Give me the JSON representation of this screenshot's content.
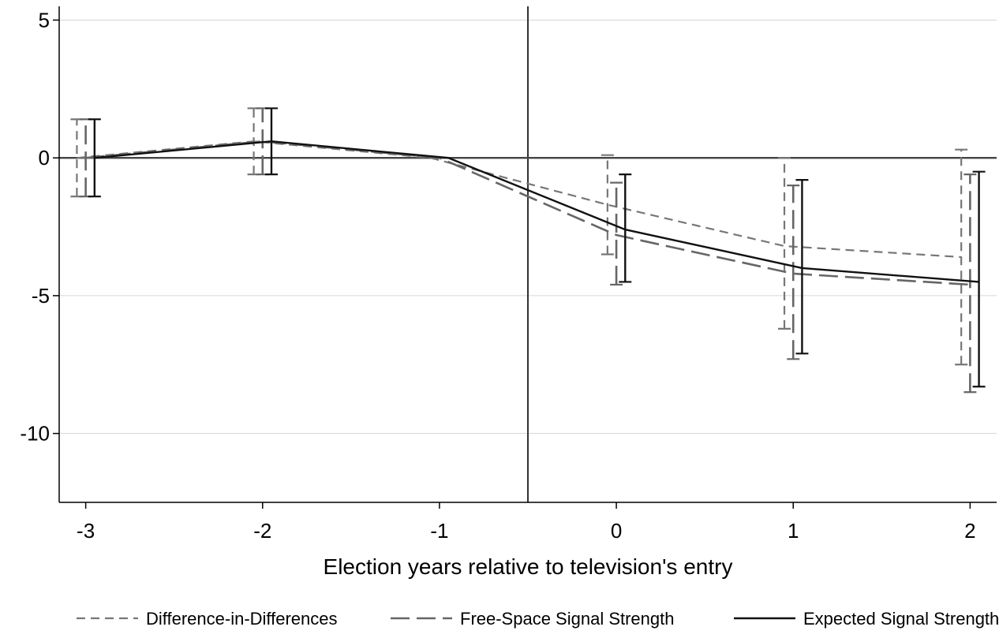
{
  "chart_data": {
    "type": "line",
    "xlabel": "Election years relative to television's entry",
    "ylabel": "",
    "xlim": [
      -3.15,
      2.15
    ],
    "ylim": [
      -12.5,
      5.5
    ],
    "x_ticks": [
      "-3",
      "-2",
      "-1",
      "0",
      "1",
      "2"
    ],
    "y_ticks": [
      "5",
      "0",
      "-5",
      "-10"
    ],
    "grid": "horizontal",
    "reference_lines": {
      "vertical_x": -0.5,
      "horizontal_y": 0
    },
    "legend_position": "bottom",
    "series": [
      {
        "name": "Difference-in-Differences",
        "style": "short-dash",
        "color": "#777777",
        "offset": -0.05,
        "x": [
          -3,
          -2,
          -1,
          0,
          1,
          2
        ],
        "y": [
          0.0,
          0.6,
          0.0,
          -1.7,
          -3.2,
          -3.6
        ],
        "ci_low": [
          -1.4,
          -0.6,
          null,
          -3.5,
          -6.2,
          -7.5
        ],
        "ci_high": [
          1.4,
          1.8,
          null,
          0.1,
          0.0,
          0.3
        ]
      },
      {
        "name": "Free-Space Signal Strength",
        "style": "long-dash",
        "color": "#666666",
        "offset": 0.0,
        "x": [
          -3,
          -2,
          -1,
          0,
          1,
          2
        ],
        "y": [
          0.0,
          0.6,
          0.0,
          -2.8,
          -4.2,
          -4.6
        ],
        "ci_low": [
          -1.4,
          -0.6,
          null,
          -4.6,
          -7.3,
          -8.5
        ],
        "ci_high": [
          1.4,
          1.8,
          null,
          -0.9,
          -1.0,
          -0.6
        ]
      },
      {
        "name": "Expected Signal Strength",
        "style": "solid",
        "color": "#111111",
        "offset": 0.05,
        "x": [
          -3,
          -2,
          -1,
          0,
          1,
          2
        ],
        "y": [
          0.0,
          0.6,
          0.0,
          -2.6,
          -4.0,
          -4.5
        ],
        "ci_low": [
          -1.4,
          -0.6,
          null,
          -4.5,
          -7.1,
          -8.3
        ],
        "ci_high": [
          1.4,
          1.8,
          null,
          -0.6,
          -0.8,
          -0.5
        ]
      }
    ]
  }
}
